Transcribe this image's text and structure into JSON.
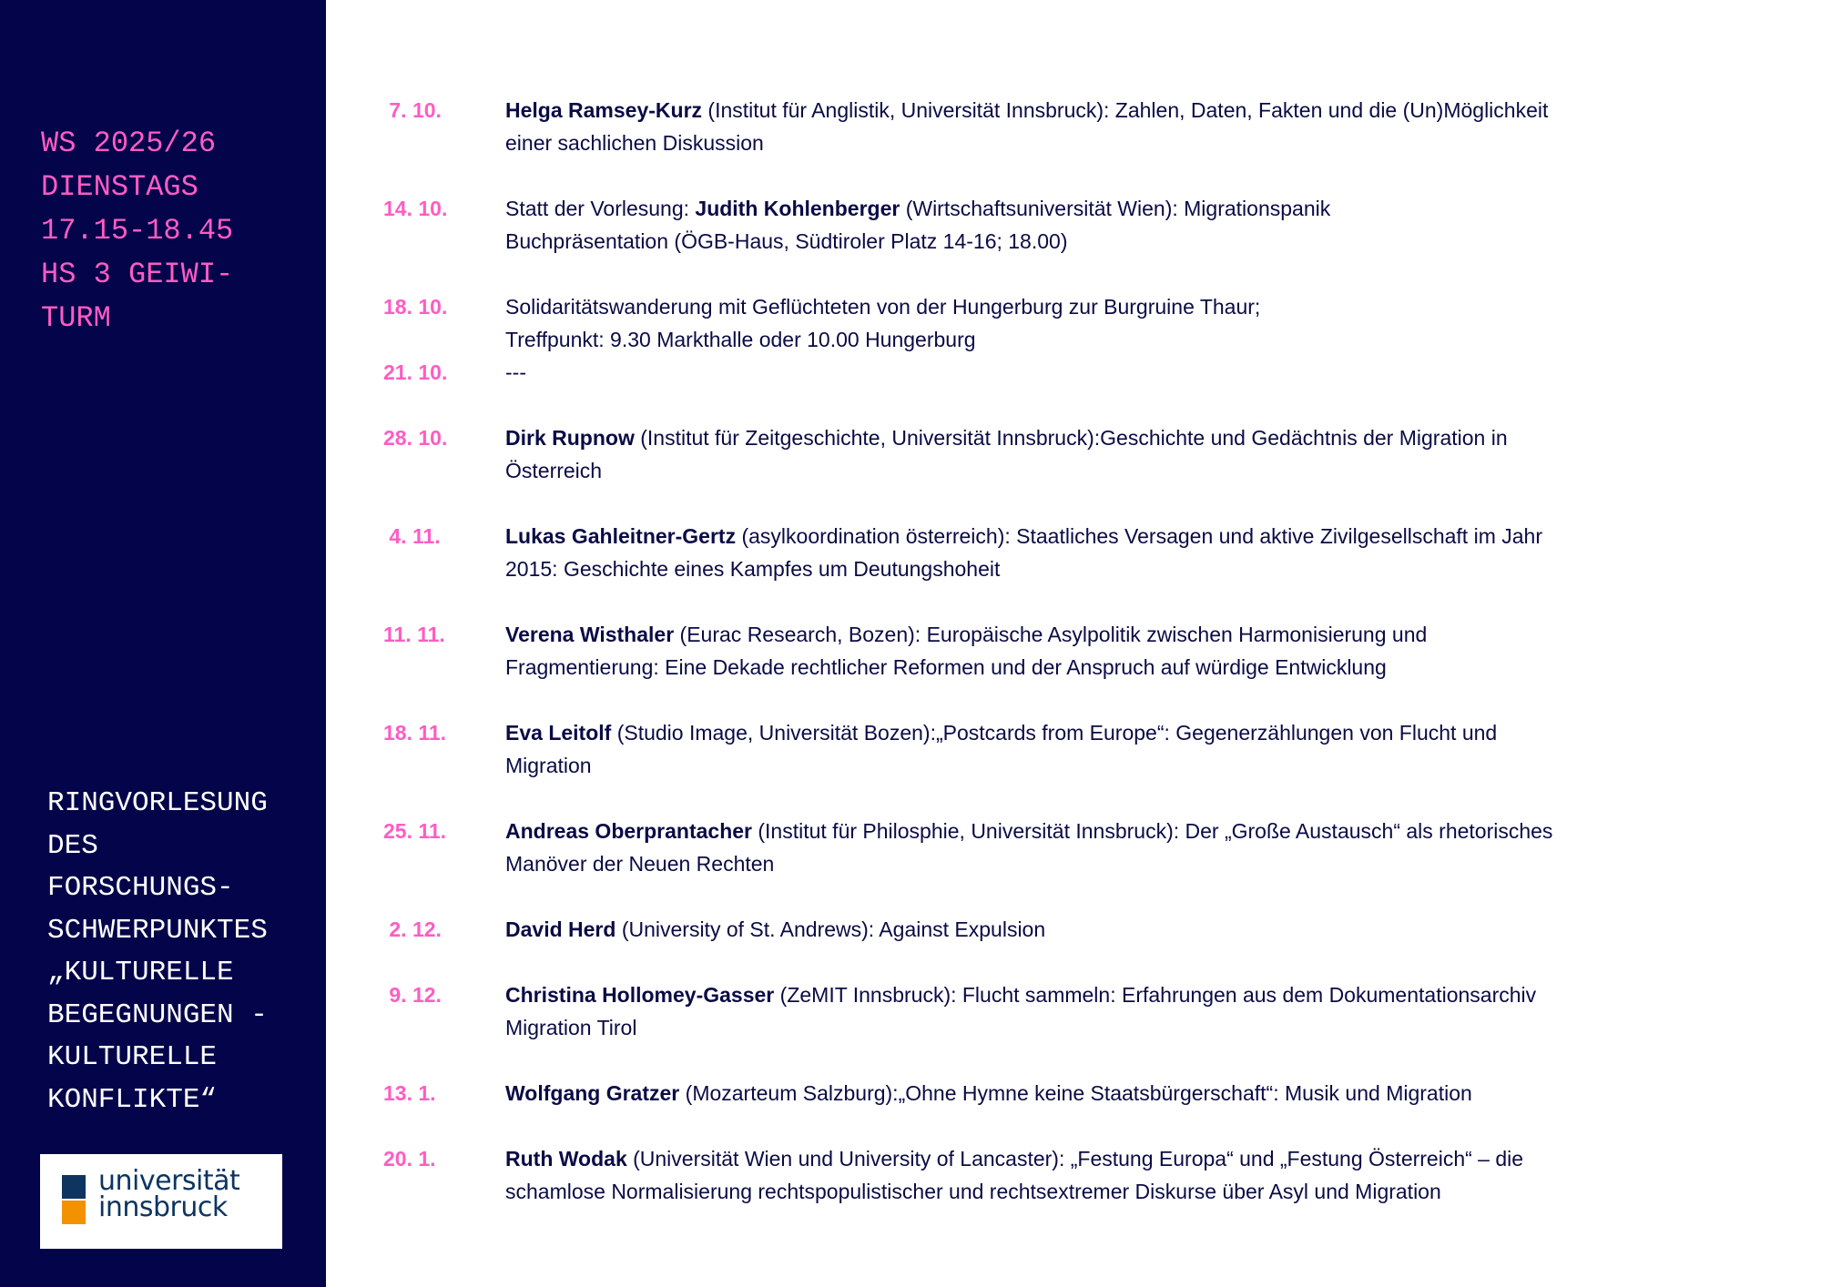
{
  "sidebar": {
    "info_lines": [
      "WS 2025/26",
      "DIENSTAGS",
      "17.15-18.45",
      "HS 3 GEIWI-",
      "TURM"
    ],
    "title_lines": [
      "RINGVORLESUNG",
      "DES",
      "FORSCHUNGS-",
      "SCHWERPUNKTES",
      "„KULTURELLE",
      "BEGEGNUNGEN -",
      "KULTURELLE",
      "KONFLIKTE“"
    ],
    "logo": {
      "line1": "universität",
      "line2": "innsbruck",
      "colors": {
        "blue": "#0d3560",
        "orange": "#f39200"
      }
    }
  },
  "colors": {
    "sidebar_bg": "#03044a",
    "accent_pink": "#ff5cc4",
    "text": "#0a0b45"
  },
  "schedule": [
    {
      "date": " 7. 10.",
      "lines": [
        [
          {
            "t": "Helga Ramsey-Kurz",
            "b": true
          },
          {
            "t": " (Institut für Anglistik, Universität Innsbruck): Zahlen, Daten, Fakten und die (Un)Möglichkeit"
          }
        ],
        [
          {
            "t": "einer sachlichen Diskussion"
          }
        ]
      ]
    },
    {
      "date": "14. 10.",
      "lines": [
        [
          {
            "t": "Statt der Vorlesung: "
          },
          {
            "t": "Judith Kohlenberger",
            "b": true
          },
          {
            "t": " (Wirtschaftsuniversität Wien): Migrationspanik"
          }
        ],
        [
          {
            "t": "Buchpräsentation (ÖGB-Haus, Südtiroler Platz 14-16; 18.00)"
          }
        ]
      ]
    },
    {
      "date": "18. 10.",
      "tight": true,
      "lines": [
        [
          {
            "t": "Solidaritätswanderung mit Geflüchteten von der Hungerburg zur Burgruine Thaur;"
          }
        ],
        [
          {
            "t": "Treffpunkt: 9.30  Markthalle oder 10.00 Hungerburg"
          }
        ]
      ]
    },
    {
      "date": "21. 10.",
      "lines": [
        [
          {
            "t": "---"
          }
        ]
      ]
    },
    {
      "date": "28. 10.",
      "lines": [
        [
          {
            "t": "Dirk Rupnow",
            "b": true
          },
          {
            "t": " (Institut für Zeitgeschichte, Universität Innsbruck):Geschichte und Gedächtnis der Migration in"
          }
        ],
        [
          {
            "t": "Österreich"
          }
        ]
      ]
    },
    {
      "date": " 4. 11.",
      "lines": [
        [
          {
            "t": "Lukas Gahleitner-Gertz",
            "b": true
          },
          {
            "t": " (asylkoordination österreich): Staatliches Versagen und aktive Zivilgesellschaft im Jahr"
          }
        ],
        [
          {
            "t": "2015: Geschichte eines Kampfes um Deutungshoheit"
          }
        ]
      ]
    },
    {
      "date": "11. 11.",
      "lines": [
        [
          {
            "t": "Verena Wisthaler",
            "b": true
          },
          {
            "t": " (Eurac Research, Bozen): Europäische Asylpolitik zwischen Harmonisierung und"
          }
        ],
        [
          {
            "t": "Fragmentierung: Eine Dekade rechtlicher Reformen und der Anspruch auf würdige Entwicklung"
          }
        ]
      ]
    },
    {
      "date": "18. 11.",
      "lines": [
        [
          {
            "t": "Eva Leitolf",
            "b": true
          },
          {
            "t": " (Studio Image, Universität Bozen):„Postcards from Europe“: Gegenerzählungen von Flucht und"
          }
        ],
        [
          {
            "t": "Migration"
          }
        ]
      ]
    },
    {
      "date": "25. 11.",
      "lines": [
        [
          {
            "t": "Andreas Oberprantacher",
            "b": true
          },
          {
            "t": " (Institut für Philosphie, Universität Innsbruck): Der „Große Austausch“ als rhetorisches"
          }
        ],
        [
          {
            "t": "Manöver der Neuen Rechten"
          }
        ]
      ]
    },
    {
      "date": " 2. 12.",
      "lines": [
        [
          {
            "t": "David Herd",
            "b": true
          },
          {
            "t": " (University of St. Andrews): Against Expulsion"
          }
        ]
      ]
    },
    {
      "date": " 9. 12.",
      "lines": [
        [
          {
            "t": "Christina Hollomey-Gasser",
            "b": true
          },
          {
            "t": " (ZeMIT Innsbruck): Flucht sammeln: Erfahrungen aus dem Dokumentationsarchiv"
          }
        ],
        [
          {
            "t": "Migration Tirol"
          }
        ]
      ]
    },
    {
      "date": "13. 1.",
      "lines": [
        [
          {
            "t": "Wolfgang Gratzer",
            "b": true
          },
          {
            "t": " (Mozarteum Salzburg):„Ohne Hymne keine Staatsbürgerschaft“: Musik und Migration"
          }
        ]
      ]
    },
    {
      "date": "20. 1.",
      "lines": [
        [
          {
            "t": "Ruth Wodak",
            "b": true
          },
          {
            "t": " (Universität Wien und University of Lancaster): „Festung Europa“ und „Festung Österreich“ – die"
          }
        ],
        [
          {
            "t": "schamlose Normalisierung rechtspopulistischer und rechtsextremer Diskurse über Asyl und Migration"
          }
        ]
      ]
    }
  ]
}
